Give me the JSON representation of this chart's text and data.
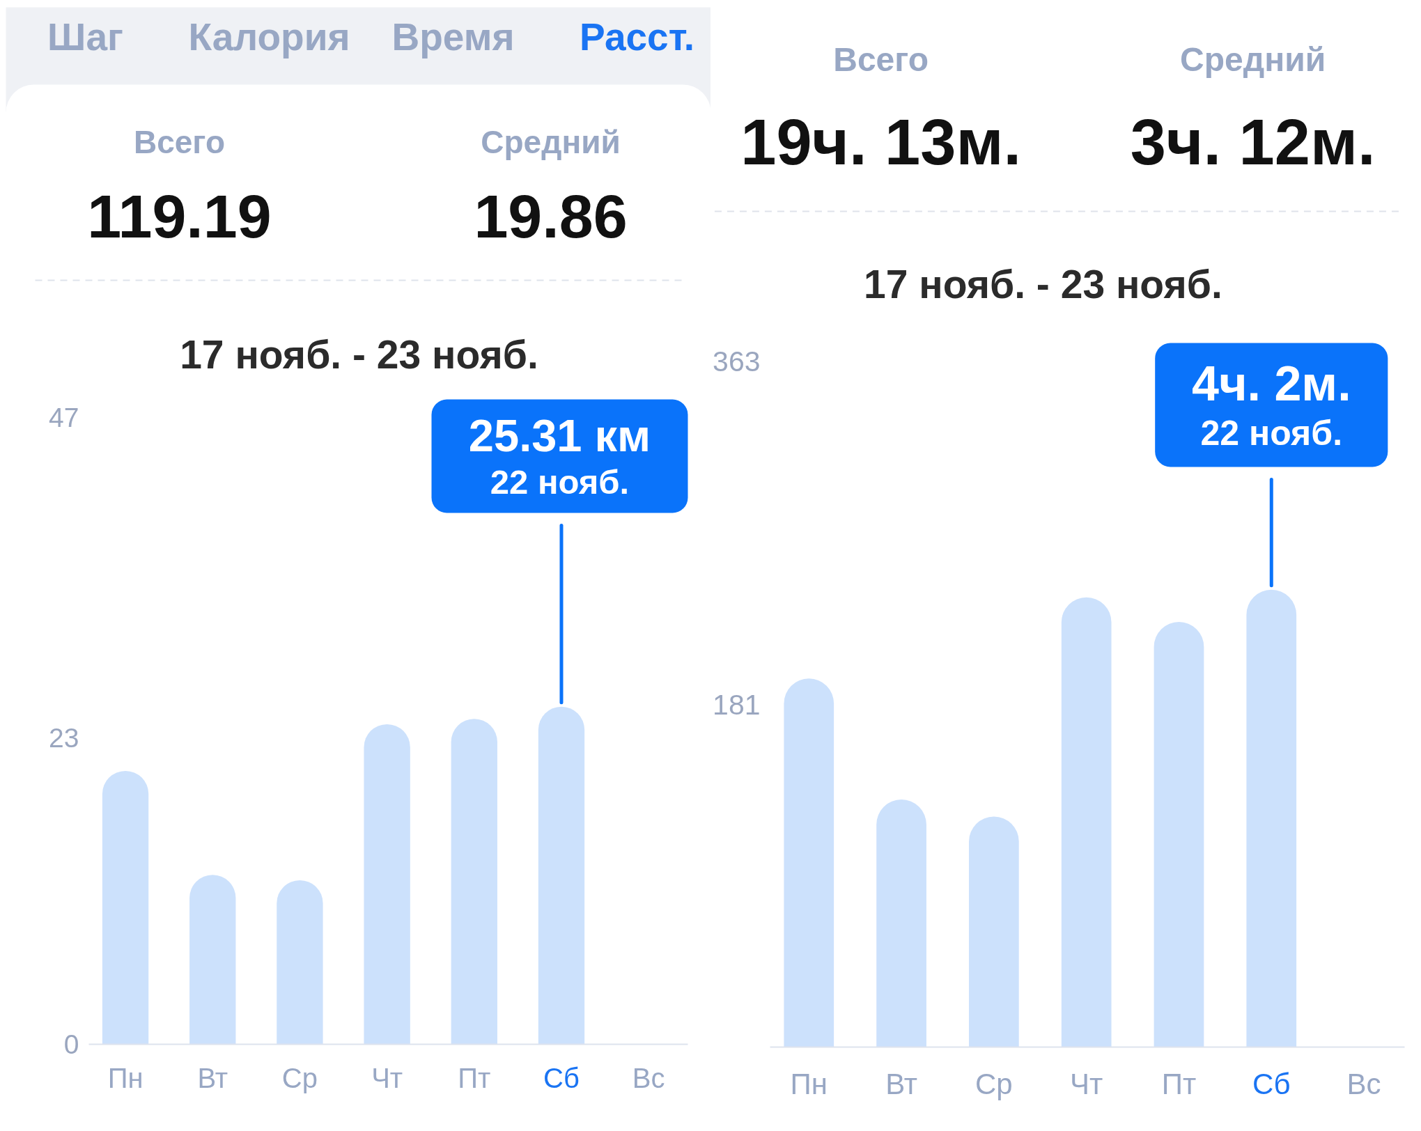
{
  "chart_data": [
    {
      "type": "other",
      "annotations": [
        "Шаг",
        "Калория",
        "Время",
        "Расст.",
        "Всего",
        "119.19",
        "Средний",
        "19.86"
      ]
    },
    {
      "type": "bar",
      "title": "17 нояб. - 23 нояб.",
      "categories": [
        "Пн",
        "Вт",
        "Ср",
        "Чт",
        "Пт",
        "Сб",
        "Вс"
      ],
      "values": [
        20.5,
        12.7,
        12.3,
        24.0,
        24.4,
        25.31,
        null
      ],
      "color": "#cce1fc",
      "ylim": [
        0,
        47
      ],
      "yticks": [
        0,
        23,
        47
      ],
      "annotations": [
        {
          "text": "25.31 км\n22 нояб.",
          "x": "Сб",
          "y": 25.31
        }
      ]
    },
    {
      "type": "other",
      "annotations": [
        "Всего",
        "19ч. 13м.",
        "Средний",
        "3ч. 12м."
      ]
    },
    {
      "type": "bar",
      "title": "17 нояб. - 23 нояб.",
      "categories": [
        "Пн",
        "Вт",
        "Ср",
        "Чт",
        "Пт",
        "Сб",
        "Вс"
      ],
      "values": [
        195,
        131,
        122,
        238,
        225,
        242,
        null
      ],
      "color": "#cce1fc",
      "ylim": [
        0,
        363
      ],
      "yticks": [
        181,
        363
      ],
      "annotations": [
        {
          "text": "4ч. 2м.\n22 нояб.",
          "x": "Сб",
          "y": 242
        }
      ]
    }
  ]
}
